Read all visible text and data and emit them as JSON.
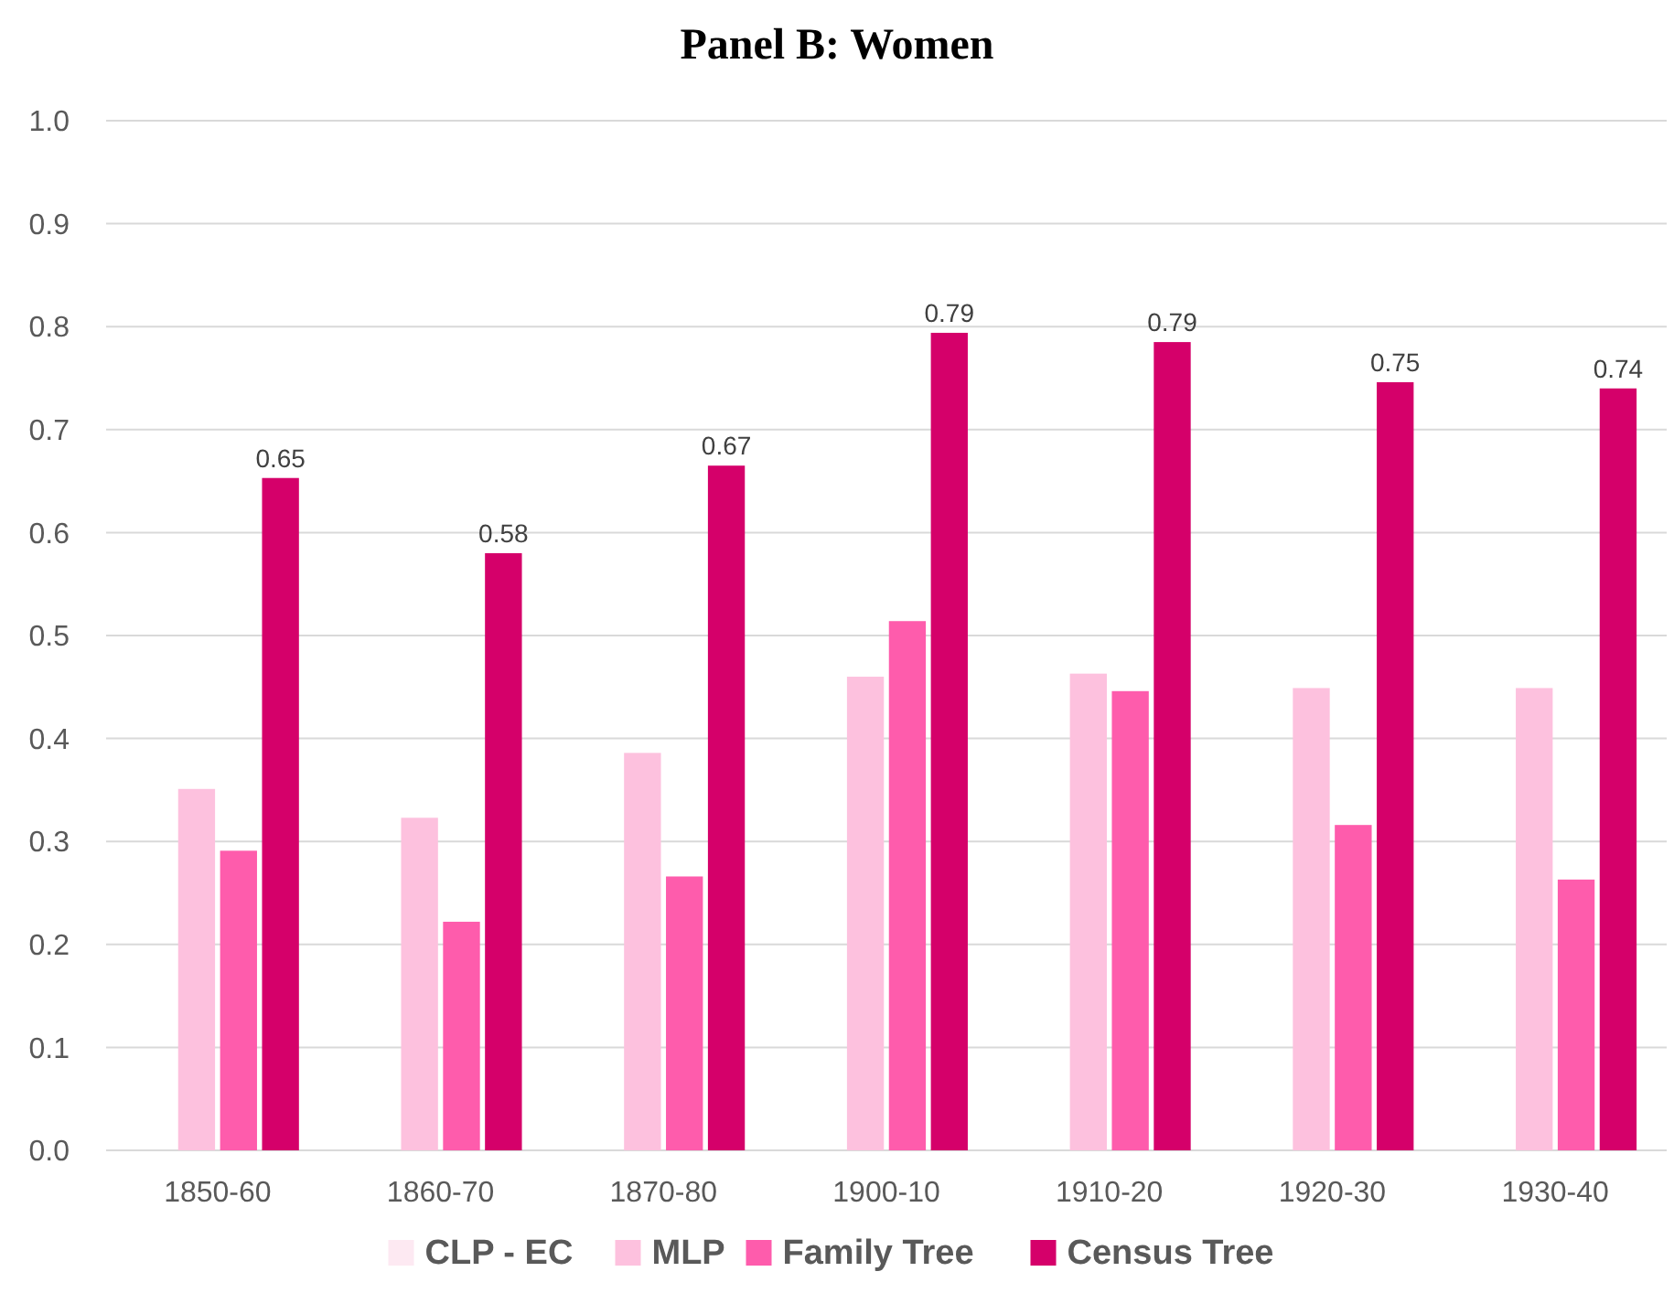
{
  "chart_data": {
    "type": "bar",
    "title": "Panel B: Women",
    "categories": [
      "1850-60",
      "1860-70",
      "1870-80",
      "1900-10",
      "1910-20",
      "1920-30",
      "1930-40"
    ],
    "series": [
      {
        "name": "CLP - EC",
        "color": "#fde9f2",
        "values": [
          null,
          null,
          null,
          null,
          null,
          null,
          null
        ]
      },
      {
        "name": "MLP",
        "color": "#fdc1de",
        "values": [
          0.351,
          0.323,
          0.386,
          0.46,
          0.463,
          0.449,
          0.449
        ]
      },
      {
        "name": "Family Tree",
        "color": "#fe5cac",
        "values": [
          0.291,
          0.222,
          0.266,
          0.514,
          0.446,
          0.316,
          0.263
        ]
      },
      {
        "name": "Census Tree",
        "color": "#d5006a",
        "values": [
          0.653,
          0.58,
          0.665,
          0.794,
          0.785,
          0.746,
          0.74
        ],
        "value_labels": [
          "0.65",
          "0.58",
          "0.67",
          "0.79",
          "0.79",
          "0.75",
          "0.74"
        ]
      }
    ],
    "ylim": [
      0,
      1
    ],
    "yticks": [
      {
        "value": 0,
        "label": "0.0"
      },
      {
        "value": 0.1,
        "label": "0.1"
      },
      {
        "value": 0.2,
        "label": "0.2"
      },
      {
        "value": 0.3,
        "label": "0.3"
      },
      {
        "value": 0.4,
        "label": "0.4"
      },
      {
        "value": 0.5,
        "label": "0.5"
      },
      {
        "value": 0.6,
        "label": "0.6"
      },
      {
        "value": 0.7,
        "label": "0.7"
      },
      {
        "value": 0.8,
        "label": "0.8"
      },
      {
        "value": 0.9,
        "label": "0.9"
      },
      {
        "value": 1,
        "label": "1.0"
      }
    ],
    "grid": "y",
    "legend": "bottom"
  }
}
